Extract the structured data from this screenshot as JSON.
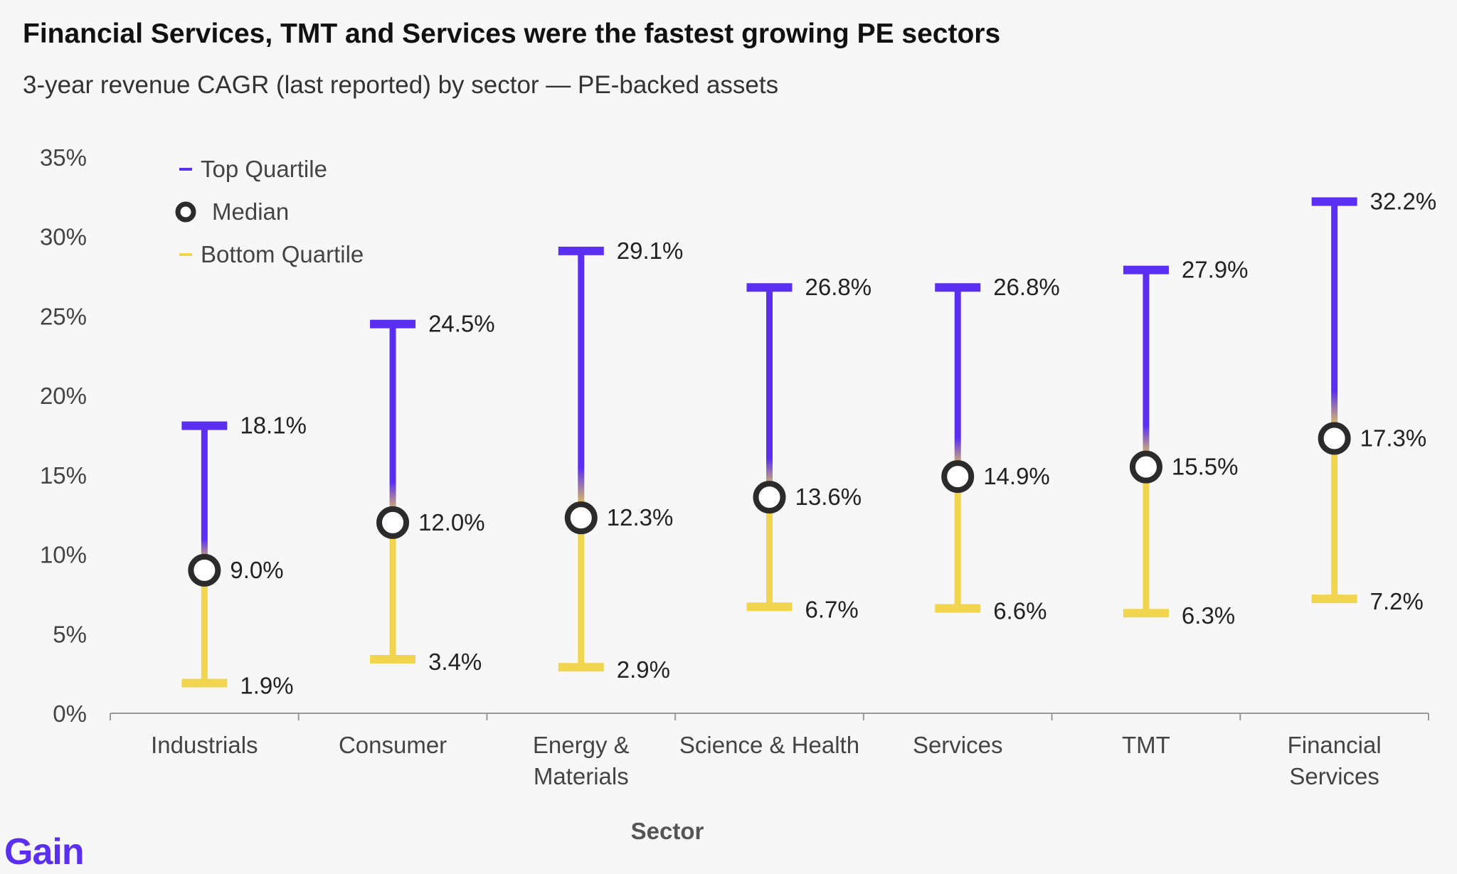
{
  "title": "Financial Services, TMT and Services were the fastest growing PE sectors",
  "subtitle": "3-year revenue CAGR (last reported) by sector — PE-backed assets",
  "logo": "Gain",
  "colors": {
    "top_quartile": "#5b2ff2",
    "bottom_quartile": "#f2d54e",
    "median_ring": "#2b2b2b",
    "axis": "#999999"
  },
  "chart_data": {
    "type": "range",
    "xlabel": "Sector",
    "ylabel": "",
    "ylim": [
      0,
      35
    ],
    "yticks": [
      0,
      5,
      10,
      15,
      20,
      25,
      30,
      35
    ],
    "ytick_labels": [
      "0%",
      "5%",
      "10%",
      "15%",
      "20%",
      "25%",
      "30%",
      "35%"
    ],
    "legend": {
      "placement": "top-left",
      "items": [
        "Top Quartile",
        "Median",
        "Bottom Quartile"
      ]
    },
    "categories": [
      [
        "Industrials"
      ],
      [
        "Consumer"
      ],
      [
        "Energy &",
        "Materials"
      ],
      [
        "Science & Health"
      ],
      [
        "Services"
      ],
      [
        "TMT"
      ],
      [
        "Financial",
        "Services"
      ]
    ],
    "series": [
      {
        "name": "Top Quartile",
        "values": [
          18.1,
          24.5,
          29.1,
          26.8,
          26.8,
          27.9,
          32.2
        ],
        "labels": [
          "18.1%",
          "24.5%",
          "29.1%",
          "26.8%",
          "26.8%",
          "27.9%",
          "32.2%"
        ]
      },
      {
        "name": "Median",
        "values": [
          9.0,
          12.0,
          12.3,
          13.6,
          14.9,
          15.5,
          17.3
        ],
        "labels": [
          "9.0%",
          "12.0%",
          "12.3%",
          "13.6%",
          "14.9%",
          "15.5%",
          "17.3%"
        ]
      },
      {
        "name": "Bottom Quartile",
        "values": [
          1.9,
          3.4,
          2.9,
          6.7,
          6.6,
          6.3,
          7.2
        ],
        "labels": [
          "1.9%",
          "3.4%",
          "2.9%",
          "6.7%",
          "6.6%",
          "6.3%",
          "7.2%"
        ]
      }
    ]
  }
}
